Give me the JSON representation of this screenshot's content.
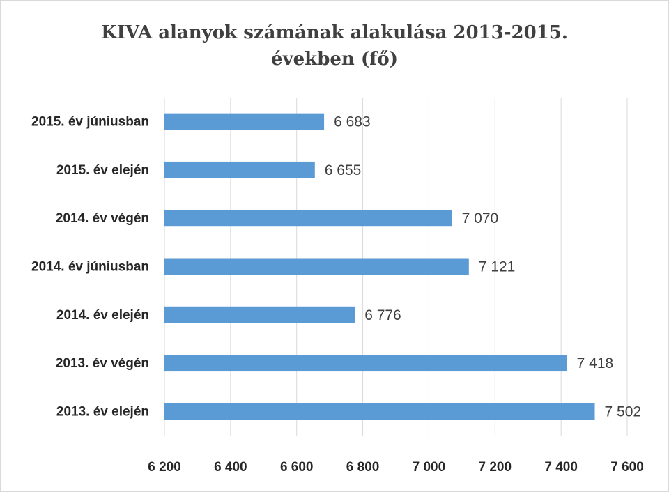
{
  "chart_data": {
    "type": "bar",
    "orientation": "horizontal",
    "title": "KIVA alanyok számának alakulása 2013-2015. években (fő)",
    "title_lines": [
      "KIVA alanyok számának alakulása 2013-2015.",
      "években (fő)"
    ],
    "categories": [
      "2015. év  júniusban",
      "2015. év elején",
      "2014. év végén",
      "2014. év júniusban",
      "2014. év elején",
      "2013. év végén",
      "2013. év elején"
    ],
    "values": [
      6683,
      6655,
      7070,
      7121,
      6776,
      7418,
      7502
    ],
    "value_labels": [
      "6 683",
      "6 655",
      "7 070",
      "7 121",
      "6 776",
      "7 418",
      "7 502"
    ],
    "xlim": [
      6200,
      7600
    ],
    "x_ticks": [
      6200,
      6400,
      6600,
      6800,
      7000,
      7200,
      7400,
      7600
    ],
    "x_tick_labels": [
      "6 200",
      "6 400",
      "6 600",
      "6 800",
      "7 000",
      "7 200",
      "7 400",
      "7 600"
    ],
    "grid": true,
    "bar_color": "#5b9bd5"
  }
}
